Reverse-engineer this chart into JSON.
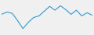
{
  "x": [
    0,
    1,
    2,
    3,
    4,
    5,
    6,
    7,
    8,
    9,
    10,
    11,
    12,
    13,
    14,
    15,
    16,
    17
  ],
  "y": [
    6.5,
    7.2,
    6.8,
    4.5,
    2.0,
    4.0,
    5.5,
    6.0,
    7.5,
    9.0,
    7.8,
    9.2,
    8.0,
    6.5,
    7.8,
    6.0,
    7.0,
    6.2
  ],
  "line_color": "#3399cc",
  "linewidth": 0.8,
  "background_color": "#f0f0f0"
}
